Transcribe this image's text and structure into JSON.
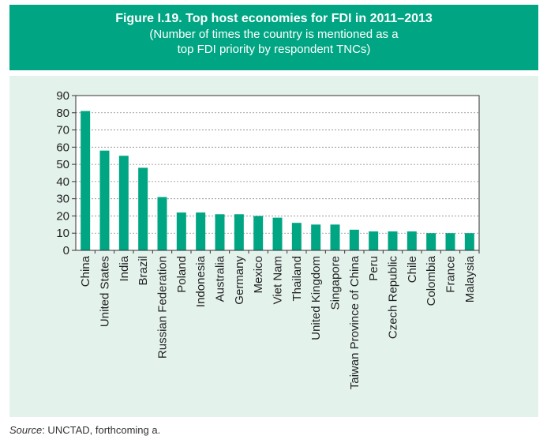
{
  "header": {
    "title": "Figure I.19.  Top host economies for FDI in 2011–2013",
    "subtitle_line1": "(Number of times the country is mentioned as a",
    "subtitle_line2": "top FDI priority by respondent TNCs)"
  },
  "source": {
    "label": "Source",
    "text": ": UNCTAD, forthcoming a."
  },
  "colors": {
    "header_bg": "#00a683",
    "panel_bg": "#e4f2ec",
    "bar": "#00a683"
  },
  "chart_data": {
    "type": "bar",
    "title": "Top host economies for FDI in 2011–2013",
    "xlabel": "",
    "ylabel": "",
    "ylim": [
      0,
      90
    ],
    "yticks": [
      0,
      10,
      20,
      30,
      40,
      50,
      60,
      70,
      80,
      90
    ],
    "grid": "horizontal dashed",
    "legend": "none",
    "categories": [
      "China",
      "United States",
      "India",
      "Brazil",
      "Russian Federation",
      "Poland",
      "Indonesia",
      "Australia",
      "Germany",
      "Mexico",
      "Viet Nam",
      "Thailand",
      "United Kingdom",
      "Singapore",
      "Taiwan Province of China",
      "Peru",
      "Czech Republic",
      "Chile",
      "Colombia",
      "France",
      "Malaysia"
    ],
    "values": [
      81,
      58,
      55,
      48,
      31,
      22,
      22,
      21,
      21,
      20,
      19,
      16,
      15,
      15,
      12,
      11,
      11,
      11,
      10,
      10,
      10
    ]
  }
}
